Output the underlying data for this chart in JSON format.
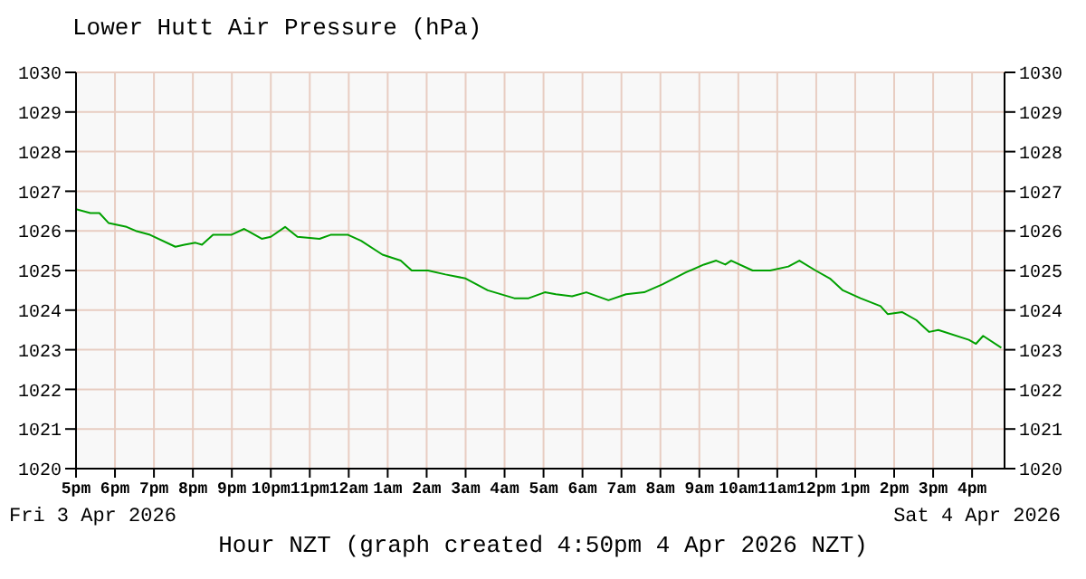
{
  "chart_data": {
    "type": "line",
    "title": "Lower Hutt Air Pressure (hPa)",
    "xlabel": "Hour NZT (graph created 4:50pm 4 Apr 2026 NZT)",
    "annotations": [
      "Fri 3 Apr 2026",
      "Sat 4 Apr 2026"
    ],
    "x": [
      "2026-04-03T17:00",
      "2026-04-03T17:22",
      "2026-04-03T17:36",
      "2026-04-03T17:50",
      "2026-04-03T18:18",
      "2026-04-03T18:32",
      "2026-04-03T18:54",
      "2026-04-03T19:33",
      "2026-04-03T19:47",
      "2026-04-03T20:04",
      "2026-04-03T20:14",
      "2026-04-03T20:31",
      "2026-04-03T20:59",
      "2026-04-03T21:19",
      "2026-04-03T21:46",
      "2026-04-03T22:00",
      "2026-04-03T22:22",
      "2026-04-03T22:41",
      "2026-04-03T23:15",
      "2026-04-03T23:32",
      "2026-04-03T23:59",
      "2026-04-04T00:19",
      "2026-04-04T00:52",
      "2026-04-04T01:20",
      "2026-04-04T01:37",
      "2026-04-04T02:02",
      "2026-04-04T02:29",
      "2026-04-04T03:00",
      "2026-04-04T03:34",
      "2026-04-04T04:15",
      "2026-04-04T04:37",
      "2026-04-04T05:02",
      "2026-04-04T05:19",
      "2026-04-04T05:44",
      "2026-04-04T06:06",
      "2026-04-04T06:40",
      "2026-04-04T07:07",
      "2026-04-04T07:35",
      "2026-04-04T08:03",
      "2026-04-04T08:39",
      "2026-04-04T09:07",
      "2026-04-04T09:26",
      "2026-04-04T09:40",
      "2026-04-04T09:49",
      "2026-04-04T10:22",
      "2026-04-04T10:49",
      "2026-04-04T11:17",
      "2026-04-04T11:34",
      "2026-04-04T11:59",
      "2026-04-04T12:21",
      "2026-04-04T12:41",
      "2026-04-04T13:08",
      "2026-04-04T13:39",
      "2026-04-04T13:50",
      "2026-04-04T14:12",
      "2026-04-04T14:34",
      "2026-04-04T14:54",
      "2026-04-04T15:08",
      "2026-04-04T15:55",
      "2026-04-04T16:06",
      "2026-04-04T16:17",
      "2026-04-04T16:45"
    ],
    "series": [
      {
        "color": "#00a000",
        "values": [
          1026.55,
          1026.45,
          1026.45,
          1026.2,
          1026.1,
          1026.0,
          1025.9,
          1025.6,
          1025.65,
          1025.7,
          1025.65,
          1025.9,
          1025.9,
          1026.05,
          1025.8,
          1025.85,
          1026.1,
          1025.85,
          1025.8,
          1025.9,
          1025.9,
          1025.75,
          1025.4,
          1025.25,
          1025.0,
          1025.0,
          1024.9,
          1024.8,
          1024.5,
          1024.3,
          1024.3,
          1024.45,
          1024.4,
          1024.35,
          1024.45,
          1024.25,
          1024.4,
          1024.45,
          1024.65,
          1024.95,
          1025.15,
          1025.25,
          1025.15,
          1025.25,
          1025.0,
          1025.0,
          1025.1,
          1025.25,
          1025.0,
          1024.8,
          1024.5,
          1024.3,
          1024.1,
          1023.9,
          1023.95,
          1023.75,
          1023.45,
          1023.5,
          1023.25,
          1023.15,
          1023.35,
          1023.05
        ]
      }
    ],
    "xlim": [
      "2026-04-03T17:00",
      "2026-04-04T16:50"
    ],
    "xticks": [
      {
        "value": "2026-04-03T17:00",
        "label": "5pm"
      },
      {
        "value": "2026-04-03T18:00",
        "label": "6pm"
      },
      {
        "value": "2026-04-03T19:00",
        "label": "7pm"
      },
      {
        "value": "2026-04-03T20:00",
        "label": "8pm"
      },
      {
        "value": "2026-04-03T21:00",
        "label": "9pm"
      },
      {
        "value": "2026-04-03T22:00",
        "label": "10pm"
      },
      {
        "value": "2026-04-03T23:00",
        "label": "11pm"
      },
      {
        "value": "2026-04-04T00:00",
        "label": "12am"
      },
      {
        "value": "2026-04-04T01:00",
        "label": "1am"
      },
      {
        "value": "2026-04-04T02:00",
        "label": "2am"
      },
      {
        "value": "2026-04-04T03:00",
        "label": "3am"
      },
      {
        "value": "2026-04-04T04:00",
        "label": "4am"
      },
      {
        "value": "2026-04-04T05:00",
        "label": "5am"
      },
      {
        "value": "2026-04-04T06:00",
        "label": "6am"
      },
      {
        "value": "2026-04-04T07:00",
        "label": "7am"
      },
      {
        "value": "2026-04-04T08:00",
        "label": "8am"
      },
      {
        "value": "2026-04-04T09:00",
        "label": "9am"
      },
      {
        "value": "2026-04-04T10:00",
        "label": "10am"
      },
      {
        "value": "2026-04-04T11:00",
        "label": "11am"
      },
      {
        "value": "2026-04-04T12:00",
        "label": "12pm"
      },
      {
        "value": "2026-04-04T13:00",
        "label": "1pm"
      },
      {
        "value": "2026-04-04T14:00",
        "label": "2pm"
      },
      {
        "value": "2026-04-04T15:00",
        "label": "3pm"
      },
      {
        "value": "2026-04-04T16:00",
        "label": "4pm"
      }
    ],
    "ylim": [
      1020,
      1030
    ],
    "yticks": [
      1020,
      1021,
      1022,
      1023,
      1024,
      1025,
      1026,
      1027,
      1028,
      1029,
      1030
    ],
    "y2lim": [
      1020,
      1030
    ],
    "y2ticks": [
      1020,
      1021,
      1022,
      1023,
      1024,
      1025,
      1026,
      1027,
      1028,
      1029,
      1030
    ],
    "grid": true,
    "marker": "none",
    "line_style": "solid"
  }
}
